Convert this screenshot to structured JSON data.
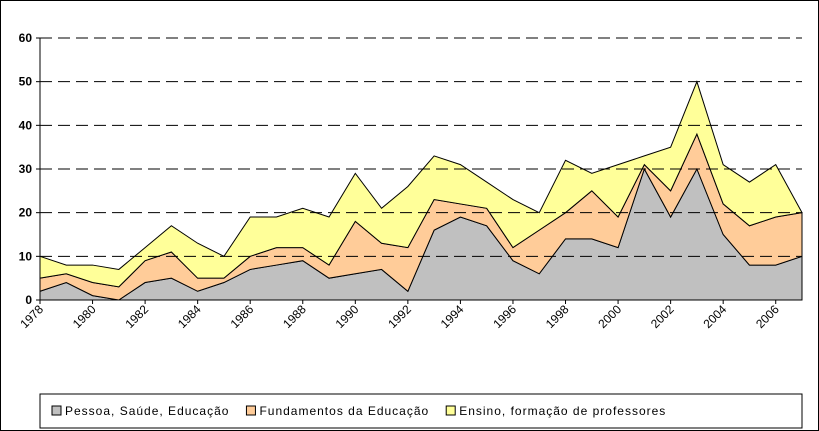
{
  "chart_data": {
    "type": "stacked_area",
    "x": [
      1978,
      1979,
      1980,
      1981,
      1982,
      1983,
      1984,
      1985,
      1986,
      1987,
      1988,
      1989,
      1990,
      1991,
      1992,
      1993,
      1994,
      1995,
      1996,
      1997,
      1998,
      1999,
      2000,
      2001,
      2002,
      2003,
      2004,
      2005,
      2006,
      2007
    ],
    "series": [
      {
        "name": "Pessoa, Saúde, Educação",
        "color": "#c0c0c0",
        "values": [
          2,
          4,
          1,
          0,
          4,
          5,
          2,
          4,
          7,
          8,
          9,
          5,
          6,
          7,
          2,
          16,
          19,
          17,
          9,
          6,
          14,
          14,
          12,
          30,
          19,
          30,
          15,
          8,
          8,
          10
        ]
      },
      {
        "name": "Fundamentos da Educação",
        "color": "#ffcc99",
        "values": [
          3,
          2,
          3,
          3,
          5,
          6,
          3,
          1,
          3,
          4,
          3,
          3,
          12,
          6,
          10,
          7,
          3,
          4,
          3,
          10,
          6,
          11,
          7,
          1,
          6,
          8,
          7,
          9,
          11,
          10
        ]
      },
      {
        "name": "Ensino, formação de professores",
        "color": "#ffff99",
        "values": [
          5,
          2,
          4,
          4,
          3,
          6,
          8,
          5,
          9,
          7,
          9,
          11,
          11,
          8,
          14,
          10,
          9,
          6,
          11,
          4,
          12,
          4,
          12,
          2,
          10,
          12,
          9,
          10,
          12,
          0
        ]
      }
    ],
    "xlim": [
      1978,
      2007
    ],
    "xticks": [
      1978,
      1980,
      1982,
      1984,
      1986,
      1988,
      1990,
      1992,
      1994,
      1996,
      1998,
      2000,
      2002,
      2004,
      2006
    ],
    "ylim": [
      0,
      60
    ],
    "yticks": [
      0,
      10,
      20,
      30,
      40,
      50,
      60
    ],
    "grid": true,
    "legend": "bottom"
  }
}
